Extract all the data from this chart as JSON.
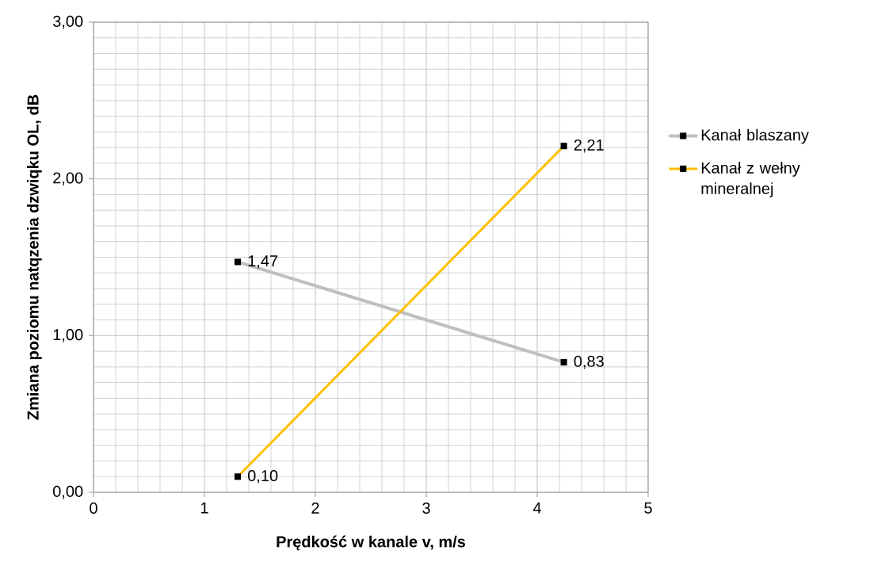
{
  "chart_data": {
    "type": "line",
    "xlabel": "Prędkość w kanale v, m/s",
    "ylabel": "Zmiana poziomu natqzenia dzwiqku OL, dB",
    "x": [
      1.3,
      4.24
    ],
    "series": [
      {
        "name": "Kanał blaszany",
        "color": "#bfbfbf",
        "values": [
          1.47,
          0.83
        ],
        "value_labels": [
          "1,47",
          "0,83"
        ]
      },
      {
        "name": "Kanał z wełny mineralnej",
        "color": "#ffc000",
        "values": [
          0.1,
          2.21
        ],
        "value_labels": [
          "0,10",
          "2,21"
        ]
      }
    ],
    "xlim": [
      0,
      5
    ],
    "ylim": [
      0,
      3
    ],
    "xticks": [
      0,
      1,
      2,
      3,
      4,
      5
    ],
    "yticks": [
      {
        "value": 0,
        "label": "0,00"
      },
      {
        "value": 1,
        "label": "1,00"
      },
      {
        "value": 2,
        "label": "2,00"
      },
      {
        "value": 3,
        "label": "3,00"
      }
    ],
    "grid": true,
    "legend": "right",
    "marker": "square",
    "line_style": "solid"
  }
}
